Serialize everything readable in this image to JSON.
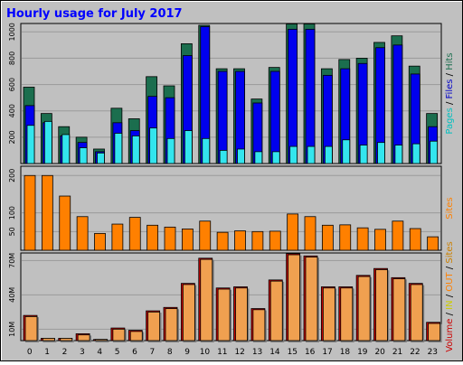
{
  "chart_data": {
    "type": "bar",
    "title": "Hourly usage for July 2017",
    "categories": [
      "0",
      "1",
      "2",
      "3",
      "4",
      "5",
      "6",
      "7",
      "8",
      "9",
      "10",
      "11",
      "12",
      "13",
      "14",
      "15",
      "16",
      "17",
      "18",
      "19",
      "20",
      "21",
      "22",
      "23"
    ],
    "panels": [
      {
        "id": "hits",
        "side_label_parts": [
          {
            "text": "Pages",
            "color": "#00c0c0"
          },
          {
            "text": " / ",
            "color": "#000000"
          },
          {
            "text": "Files",
            "color": "#0000c8"
          },
          {
            "text": " / ",
            "color": "#000000"
          },
          {
            "text": "Hits",
            "color": "#1b6e4e"
          }
        ],
        "ylim": [
          0,
          1050
        ],
        "yticks": [
          "200",
          "400",
          "600",
          "800",
          "1000"
        ],
        "ytick_values": [
          200,
          400,
          600,
          800,
          1000
        ],
        "series": [
          {
            "name": "Hits",
            "color": "#1b6e4e",
            "values": [
              580,
              380,
              280,
              200,
              110,
              420,
              340,
              660,
              590,
              910,
              1050,
              720,
              720,
              490,
              730,
              1060,
              1060,
              720,
              790,
              800,
              920,
              970,
              740,
              380
            ]
          },
          {
            "name": "Files",
            "color": "#0000ee",
            "values": [
              440,
              310,
              210,
              160,
              90,
              310,
              250,
              510,
              500,
              820,
              1040,
              700,
              700,
              460,
              700,
              1020,
              1020,
              670,
              720,
              760,
              880,
              900,
              680,
              280
            ]
          },
          {
            "name": "Pages",
            "color": "#33e5ee",
            "values": [
              290,
              320,
              220,
              120,
              80,
              230,
              210,
              270,
              190,
              250,
              190,
              100,
              110,
              90,
              90,
              130,
              130,
              130,
              180,
              140,
              160,
              140,
              150,
              170
            ]
          }
        ]
      },
      {
        "id": "sites",
        "side_label_parts": [
          {
            "text": "Sites",
            "color": "#ff8000"
          }
        ],
        "ylim": [
          0,
          220
        ],
        "yticks": [
          "50",
          "100",
          "200"
        ],
        "ytick_values": [
          50,
          100,
          200
        ],
        "series": [
          {
            "name": "Sites",
            "color": "#ff8000",
            "values": [
              200,
              200,
              145,
              90,
              45,
              70,
              88,
              67,
              62,
              57,
              78,
              48,
              52,
              50,
              51,
              97,
              90,
              67,
              68,
              60,
              56,
              78,
              58,
              36
            ]
          }
        ]
      },
      {
        "id": "volume",
        "side_label_parts": [
          {
            "text": "Volume",
            "color": "#cc0000"
          },
          {
            "text": " / ",
            "color": "#000000"
          },
          {
            "text": "IN",
            "color": "#cccc00"
          },
          {
            "text": " / ",
            "color": "#000000"
          },
          {
            "text": "OUT",
            "color": "#ff8000"
          },
          {
            "text": " / ",
            "color": "#000000"
          },
          {
            "text": "Sites",
            "color": "#cc8000"
          }
        ],
        "ylim": [
          0,
          75
        ],
        "yticks": [
          "10M",
          "40M",
          "70M"
        ],
        "ytick_values": [
          10,
          40,
          70
        ],
        "series": [
          {
            "name": "Volume",
            "color": "#cc0000",
            "values": [
              22,
              2,
              2,
              6,
              1,
              11,
              9,
              26,
              29,
              50,
              72,
              46,
              47,
              28,
              53,
              76,
              74,
              47,
              47,
              57,
              63,
              55,
              50,
              16
            ]
          },
          {
            "name": "OUT",
            "color": "#f0a050",
            "values": [
              21,
              2,
              2,
              5,
              1,
              10,
              8,
              25,
              28,
              49,
              71,
              45,
              46,
              27,
              52,
              75,
              73,
              46,
              46,
              56,
              62,
              54,
              49,
              15
            ]
          }
        ]
      }
    ]
  }
}
